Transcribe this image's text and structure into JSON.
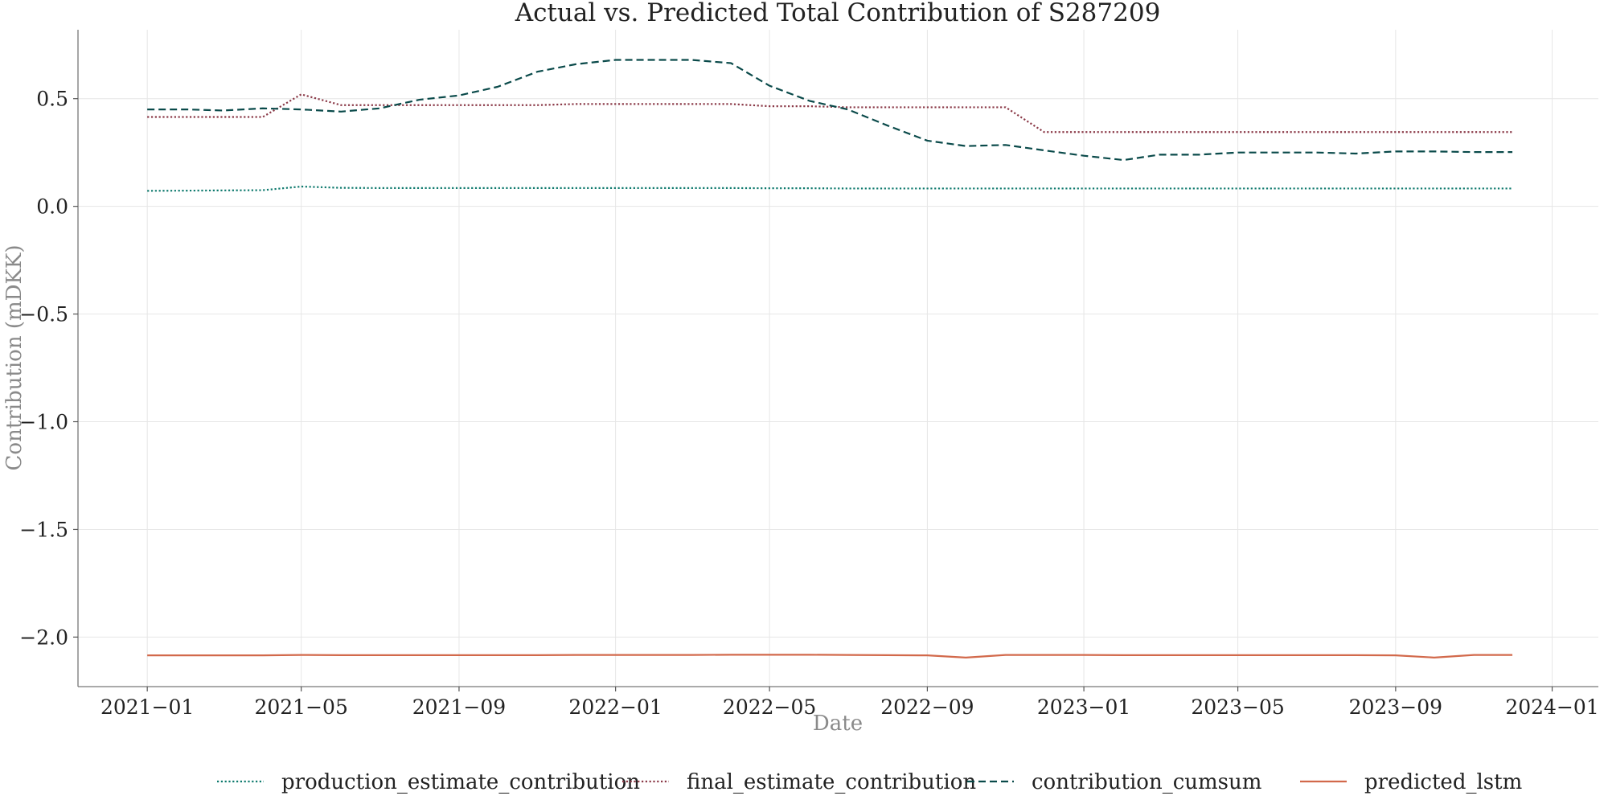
{
  "chart_data": {
    "type": "line",
    "title": "Actual vs. Predicted Total Contribution of S287209",
    "xlabel": "Date",
    "ylabel": "Contribution (mDKK)",
    "x": [
      "2021-01",
      "2021-02",
      "2021-03",
      "2021-04",
      "2021-05",
      "2021-06",
      "2021-07",
      "2021-08",
      "2021-09",
      "2021-10",
      "2021-11",
      "2021-12",
      "2022-01",
      "2022-02",
      "2022-03",
      "2022-04",
      "2022-05",
      "2022-06",
      "2022-07",
      "2022-08",
      "2022-09",
      "2022-10",
      "2022-11",
      "2022-12",
      "2023-01",
      "2023-02",
      "2023-03",
      "2023-04",
      "2023-05",
      "2023-06",
      "2023-07",
      "2023-08",
      "2023-09",
      "2023-10",
      "2023-11",
      "2023-12"
    ],
    "xticks": [
      "2021-01",
      "2021-05",
      "2021-09",
      "2022-01",
      "2022-05",
      "2022-09",
      "2023-01",
      "2023-05",
      "2023-09",
      "2024-01"
    ],
    "xlim": [
      "2020-11-08",
      "2024-02-06"
    ],
    "yticks": [
      0.5,
      0.0,
      -0.5,
      -1.0,
      -1.5,
      -2.0
    ],
    "ytick_labels": [
      "0.5",
      "0.0",
      "−0.5",
      "−1.0",
      "−1.5",
      "−2.0"
    ],
    "ylim": [
      -2.23,
      0.82
    ],
    "grid": true,
    "legend_position": "bottom-center",
    "series": [
      {
        "name": "production_estimate_contribution",
        "color": "#0f7a6e",
        "style": "dotted",
        "values": [
          0.072,
          0.073,
          0.074,
          0.075,
          0.092,
          0.086,
          0.085,
          0.085,
          0.085,
          0.085,
          0.085,
          0.085,
          0.085,
          0.085,
          0.085,
          0.085,
          0.084,
          0.084,
          0.083,
          0.083,
          0.083,
          0.083,
          0.083,
          0.083,
          0.083,
          0.083,
          0.083,
          0.083,
          0.083,
          0.083,
          0.083,
          0.083,
          0.083,
          0.083,
          0.083,
          0.083
        ]
      },
      {
        "name": "final_estimate_contribution",
        "color": "#8b3a48",
        "style": "dotted",
        "values": [
          0.415,
          0.415,
          0.415,
          0.415,
          0.52,
          0.47,
          0.47,
          0.47,
          0.47,
          0.47,
          0.47,
          0.475,
          0.475,
          0.475,
          0.475,
          0.475,
          0.465,
          0.465,
          0.46,
          0.46,
          0.46,
          0.46,
          0.46,
          0.345,
          0.345,
          0.345,
          0.345,
          0.345,
          0.345,
          0.345,
          0.345,
          0.345,
          0.345,
          0.345,
          0.345,
          0.345
        ]
      },
      {
        "name": "contribution_cumsum",
        "color": "#0a4a4a",
        "style": "dashed",
        "values": [
          0.45,
          0.45,
          0.445,
          0.455,
          0.45,
          0.44,
          0.455,
          0.495,
          0.515,
          0.555,
          0.625,
          0.66,
          0.68,
          0.68,
          0.68,
          0.665,
          0.56,
          0.49,
          0.45,
          0.375,
          0.305,
          0.28,
          0.285,
          0.26,
          0.235,
          0.215,
          0.24,
          0.24,
          0.25,
          0.25,
          0.25,
          0.245,
          0.255,
          0.255,
          0.252,
          0.252
        ]
      },
      {
        "name": "predicted_lstm",
        "color": "#d2694b",
        "style": "solid",
        "values": [
          -2.085,
          -2.085,
          -2.085,
          -2.085,
          -2.083,
          -2.084,
          -2.084,
          -2.084,
          -2.084,
          -2.084,
          -2.084,
          -2.083,
          -2.083,
          -2.083,
          -2.083,
          -2.082,
          -2.082,
          -2.082,
          -2.083,
          -2.084,
          -2.085,
          -2.095,
          -2.083,
          -2.083,
          -2.083,
          -2.084,
          -2.084,
          -2.084,
          -2.084,
          -2.084,
          -2.084,
          -2.084,
          -2.085,
          -2.095,
          -2.083,
          -2.083
        ]
      }
    ]
  }
}
